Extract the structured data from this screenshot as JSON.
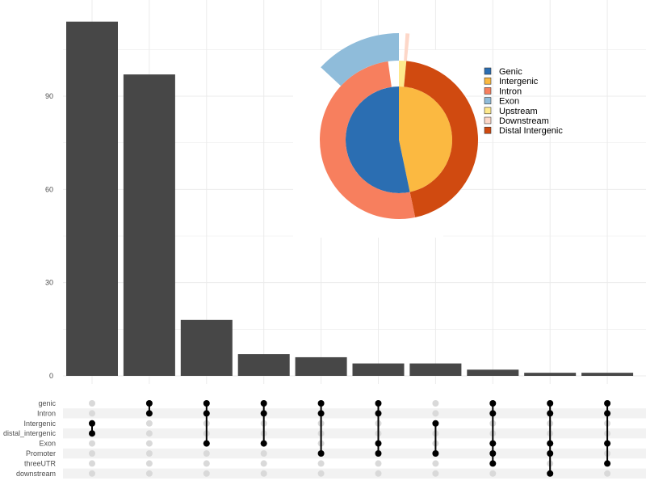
{
  "chart_data": [
    {
      "type": "bar",
      "title": "",
      "xlabel": "",
      "ylabel": "",
      "ylim": [
        0,
        115
      ],
      "y_ticks": [
        "0",
        "30",
        "60",
        "90"
      ],
      "grid": true,
      "values": [
        114,
        97,
        18,
        7,
        6,
        4,
        4,
        2,
        1,
        1
      ],
      "matrix": {
        "sets": [
          "genic",
          "Intron",
          "Intergenic",
          "distal_intergenic",
          "Exon",
          "Promoter",
          "threeUTR",
          "downstream"
        ],
        "intersections": [
          [
            "Intergenic",
            "distal_intergenic"
          ],
          [
            "genic",
            "Intron"
          ],
          [
            "genic",
            "Intron",
            "Exon"
          ],
          [
            "genic",
            "Intron",
            "Exon"
          ],
          [
            "genic",
            "Intron",
            "Promoter"
          ],
          [
            "genic",
            "Intron",
            "Exon",
            "Promoter"
          ],
          [
            "Intergenic",
            "Promoter"
          ],
          [
            "genic",
            "Intron",
            "Exon",
            "Promoter",
            "threeUTR"
          ],
          [
            "genic",
            "Intron",
            "Exon",
            "Promoter",
            "downstream"
          ],
          [
            "genic",
            "Intron",
            "Exon",
            "threeUTR"
          ]
        ]
      },
      "colors": {
        "bar": "#474747",
        "dot_on": "#000000",
        "dot_off": "#d9d9d9"
      }
    },
    {
      "type": "pie",
      "legend_position": "right",
      "legend": [
        {
          "label": "Genic",
          "color": "#2b6eb2"
        },
        {
          "label": "Intergenic",
          "color": "#fbb941"
        },
        {
          "label": "Intron",
          "color": "#f77f5e"
        },
        {
          "label": "Exon",
          "color": "#8fbcda"
        },
        {
          "label": "Upstream",
          "color": "#fee98c"
        },
        {
          "label": "Downstream",
          "color": "#fdd7c8"
        },
        {
          "label": "Distal Intergenic",
          "color": "#d04a10"
        }
      ],
      "rings": [
        {
          "level": "inner",
          "slices": [
            {
              "label": "Intergenic",
              "percent": 46.7
            },
            {
              "label": "Genic",
              "percent": 53.3
            }
          ]
        },
        {
          "level": "middle",
          "slices": [
            {
              "label": "Upstream",
              "percent": 1.5
            },
            {
              "label": "Distal Intergenic",
              "percent": 45.2
            },
            {
              "label": "Intron",
              "percent": 51.1
            },
            {
              "label": "",
              "percent": 2.2
            }
          ]
        },
        {
          "level": "outer",
          "slices": [
            {
              "label": "",
              "percent": 1.0
            },
            {
              "label": "Downstream",
              "percent": 0.6
            },
            {
              "label": "",
              "percent": 85.3
            },
            {
              "label": "Exon",
              "percent": 13.1
            }
          ]
        }
      ]
    }
  ]
}
